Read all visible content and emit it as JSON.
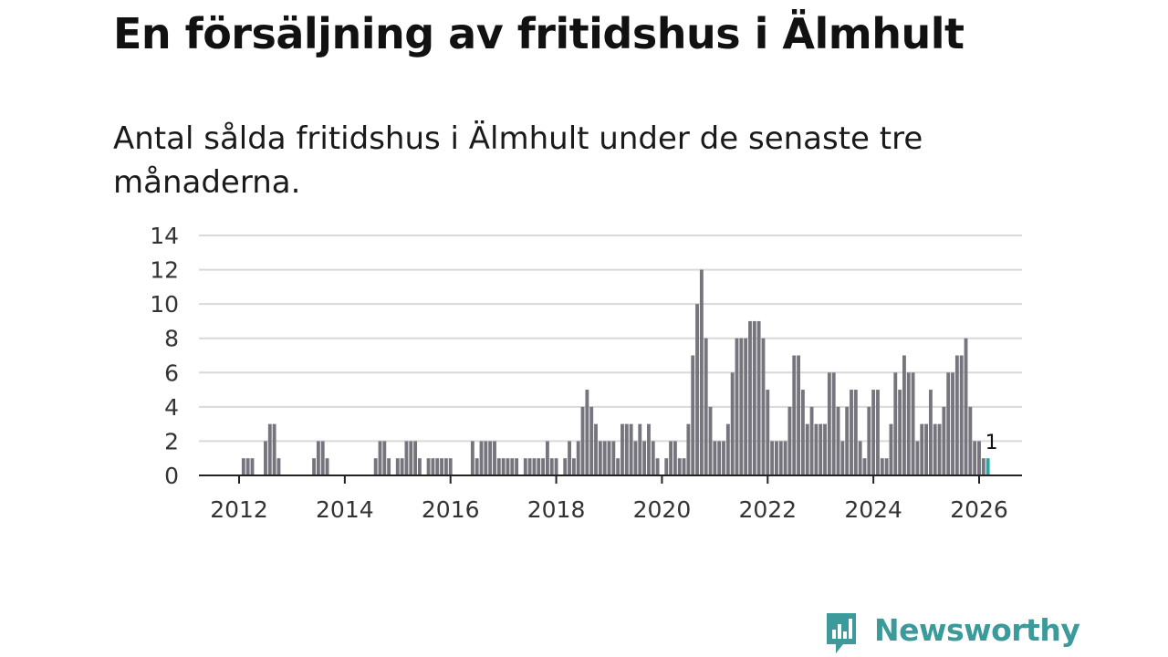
{
  "header": {
    "title": "En försäljning av fritidshus i Älmhult",
    "subtitle": "Antal sålda fritidshus i Älmhult under de senaste tre månaderna."
  },
  "brand": {
    "name": "Newsworthy",
    "logo_icon": "bar-chart-speech-bubble-icon",
    "color": "#3c9a9a"
  },
  "chart_data": {
    "type": "bar",
    "start_month": "2011-01",
    "frequency": "monthly",
    "x_ticks": [
      "2012",
      "2014",
      "2016",
      "2018",
      "2020",
      "2022",
      "2024",
      "2026"
    ],
    "y_ticks": [
      0,
      2,
      4,
      6,
      8,
      10,
      12,
      14
    ],
    "ylim": [
      0,
      14
    ],
    "grid": true,
    "bar_color": "#76757d",
    "highlight_color": "#26a6a6",
    "highlight_label": "1",
    "values": [
      0,
      0,
      0,
      0,
      0,
      0,
      0,
      0,
      0,
      0,
      0,
      0,
      0,
      1,
      1,
      1,
      0,
      0,
      2,
      3,
      3,
      1,
      0,
      0,
      0,
      0,
      0,
      0,
      0,
      1,
      2,
      2,
      1,
      0,
      0,
      0,
      0,
      0,
      0,
      0,
      0,
      0,
      0,
      1,
      2,
      2,
      1,
      0,
      1,
      1,
      2,
      2,
      2,
      1,
      0,
      1,
      1,
      1,
      1,
      1,
      1,
      0,
      0,
      0,
      0,
      2,
      1,
      2,
      2,
      2,
      2,
      1,
      1,
      1,
      1,
      1,
      0,
      1,
      1,
      1,
      1,
      1,
      2,
      1,
      1,
      0,
      1,
      2,
      1,
      2,
      4,
      5,
      4,
      3,
      2,
      2,
      2,
      2,
      1,
      3,
      3,
      3,
      2,
      3,
      2,
      3,
      2,
      1,
      0,
      1,
      2,
      2,
      1,
      1,
      3,
      7,
      10,
      12,
      8,
      4,
      2,
      2,
      2,
      3,
      6,
      8,
      8,
      8,
      9,
      9,
      9,
      8,
      5,
      2,
      2,
      2,
      2,
      4,
      7,
      7,
      5,
      3,
      4,
      3,
      3,
      3,
      6,
      6,
      4,
      2,
      4,
      5,
      5,
      2,
      1,
      4,
      5,
      5,
      1,
      1,
      3,
      6,
      5,
      7,
      6,
      6,
      2,
      3,
      3,
      5,
      3,
      3,
      4,
      6,
      6,
      7,
      7,
      8,
      4,
      2,
      2,
      1,
      1
    ]
  }
}
